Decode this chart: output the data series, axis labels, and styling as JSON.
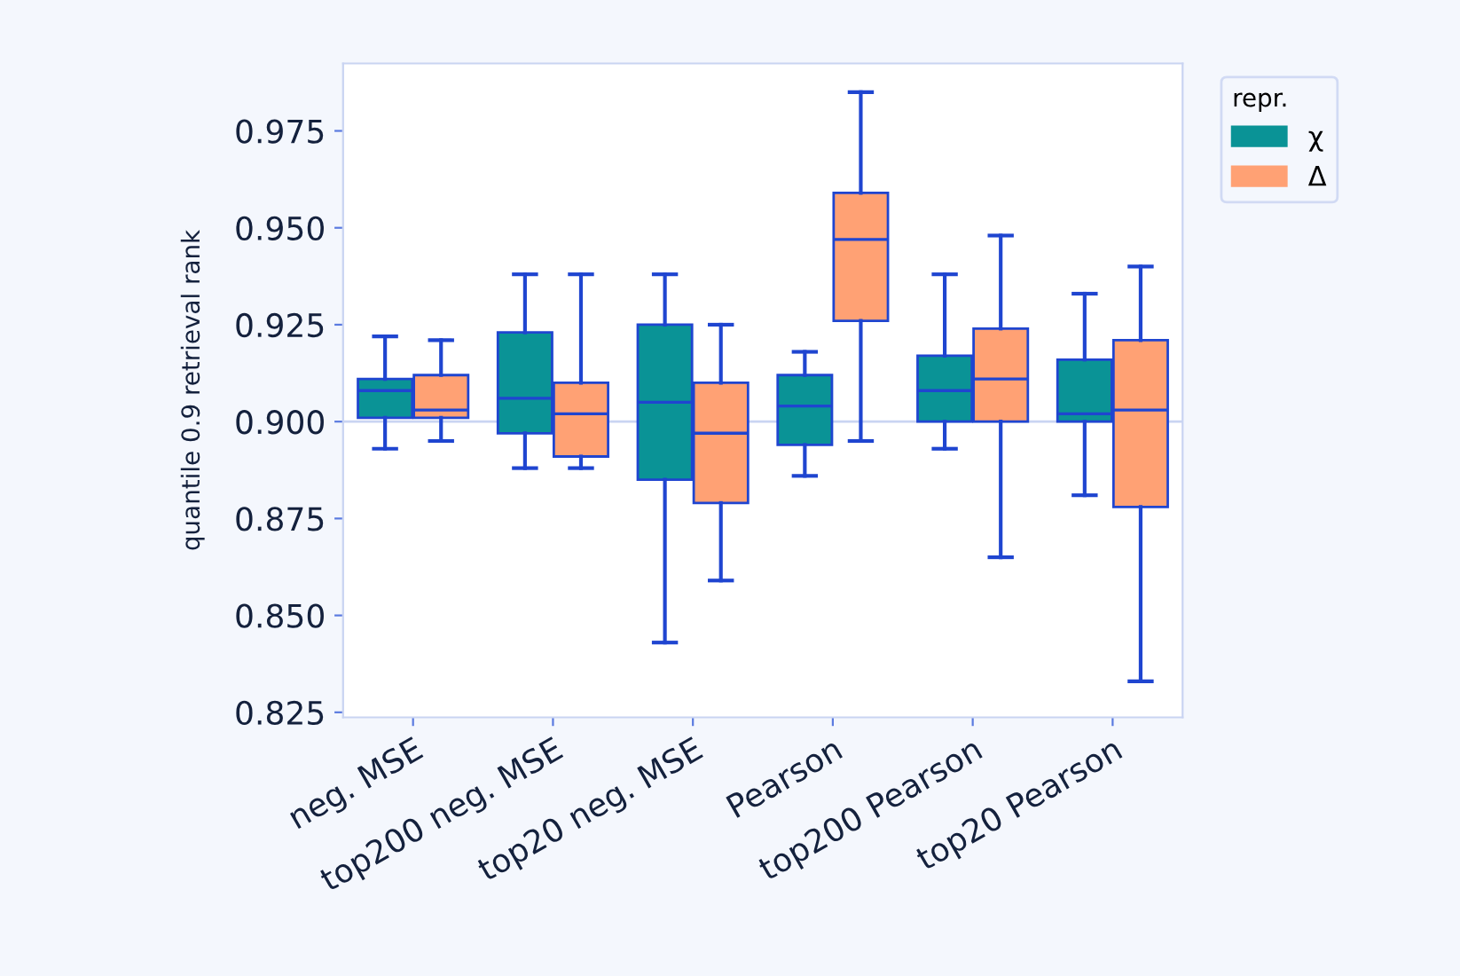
{
  "chart_data": {
    "type": "box",
    "ylabel": "quantile 0.9 retrieval rank",
    "legend_title": "repr.",
    "legend": "top right",
    "categories": [
      "neg. MSE",
      "top200 neg. MSE",
      "top20 neg. MSE",
      "Pearson",
      "top200 Pearson",
      "top20 Pearson"
    ],
    "ylim": [
      0.8237,
      0.9924
    ],
    "yticks": [
      {
        "value": 0.825,
        "label": "0.825"
      },
      {
        "value": 0.85,
        "label": "0.850"
      },
      {
        "value": 0.875,
        "label": "0.875"
      },
      {
        "value": 0.9,
        "label": "0.900"
      },
      {
        "value": 0.925,
        "label": "0.925"
      },
      {
        "value": 0.95,
        "label": "0.950"
      },
      {
        "value": 0.975,
        "label": "0.975"
      }
    ],
    "grid": false,
    "ref_lines": [
      {
        "axis": "y",
        "value": 0.9,
        "color": "#c9d4f2"
      }
    ],
    "series": [
      {
        "name": "χ",
        "color": "#0a9396",
        "boxes": [
          {
            "low": 0.893,
            "q1": 0.901,
            "median": 0.908,
            "q3": 0.911,
            "high": 0.922
          },
          {
            "low": 0.888,
            "q1": 0.897,
            "median": 0.906,
            "q3": 0.923,
            "high": 0.938
          },
          {
            "low": 0.843,
            "q1": 0.885,
            "median": 0.905,
            "q3": 0.925,
            "high": 0.938
          },
          {
            "low": 0.886,
            "q1": 0.894,
            "median": 0.904,
            "q3": 0.912,
            "high": 0.918
          },
          {
            "low": 0.893,
            "q1": 0.9,
            "median": 0.908,
            "q3": 0.917,
            "high": 0.938
          },
          {
            "low": 0.881,
            "q1": 0.9,
            "median": 0.902,
            "q3": 0.916,
            "high": 0.933
          }
        ]
      },
      {
        "name": "Δ",
        "color": "#ffa174",
        "boxes": [
          {
            "low": 0.895,
            "q1": 0.901,
            "median": 0.903,
            "q3": 0.912,
            "high": 0.921
          },
          {
            "low": 0.888,
            "q1": 0.891,
            "median": 0.902,
            "q3": 0.91,
            "high": 0.938
          },
          {
            "low": 0.859,
            "q1": 0.879,
            "median": 0.897,
            "q3": 0.91,
            "high": 0.925
          },
          {
            "low": 0.895,
            "q1": 0.926,
            "median": 0.947,
            "q3": 0.959,
            "high": 0.985
          },
          {
            "low": 0.865,
            "q1": 0.9,
            "median": 0.911,
            "q3": 0.924,
            "high": 0.948
          },
          {
            "low": 0.833,
            "q1": 0.878,
            "median": 0.903,
            "q3": 0.921,
            "high": 0.94
          }
        ]
      }
    ]
  }
}
